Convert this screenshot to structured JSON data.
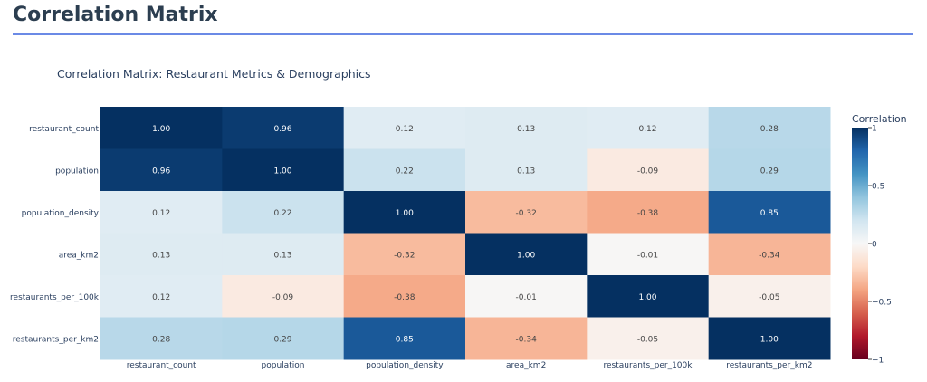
{
  "page": {
    "title": "Correlation Matrix"
  },
  "chart_data": {
    "type": "heatmap",
    "title": "Correlation Matrix: Restaurant Metrics & Demographics",
    "x": [
      "restaurant_count",
      "population",
      "population_density",
      "area_km2",
      "restaurants_per_100k",
      "restaurants_per_km2"
    ],
    "y": [
      "restaurant_count",
      "population",
      "population_density",
      "area_km2",
      "restaurants_per_100k",
      "restaurants_per_km2"
    ],
    "z": [
      [
        1.0,
        0.96,
        0.12,
        0.13,
        0.12,
        0.28
      ],
      [
        0.96,
        1.0,
        0.22,
        0.13,
        -0.09,
        0.29
      ],
      [
        0.12,
        0.22,
        1.0,
        -0.32,
        -0.38,
        0.85
      ],
      [
        0.13,
        0.13,
        -0.32,
        1.0,
        -0.01,
        -0.34
      ],
      [
        0.12,
        -0.09,
        -0.38,
        -0.01,
        1.0,
        -0.05
      ],
      [
        0.28,
        0.29,
        0.85,
        -0.34,
        -0.05,
        1.0
      ]
    ],
    "text_format": "0.00",
    "zrange": [
      -1,
      1
    ],
    "colorscale": "RdBu",
    "colorbar": {
      "title": "Correlation",
      "ticks": [
        1,
        0.5,
        0,
        -0.5,
        -1
      ],
      "tick_labels": [
        "1",
        "0.5",
        "0",
        "−0.5",
        "−1"
      ]
    },
    "colors": {
      "stops": [
        "#67001f",
        "#b2182b",
        "#d6604d",
        "#f4a582",
        "#fddbc7",
        "#f7f7f7",
        "#d1e5f0",
        "#92c5de",
        "#4393c3",
        "#2166ac",
        "#053061"
      ],
      "text_dark": "#444444",
      "text_light": "#ffffff"
    }
  }
}
